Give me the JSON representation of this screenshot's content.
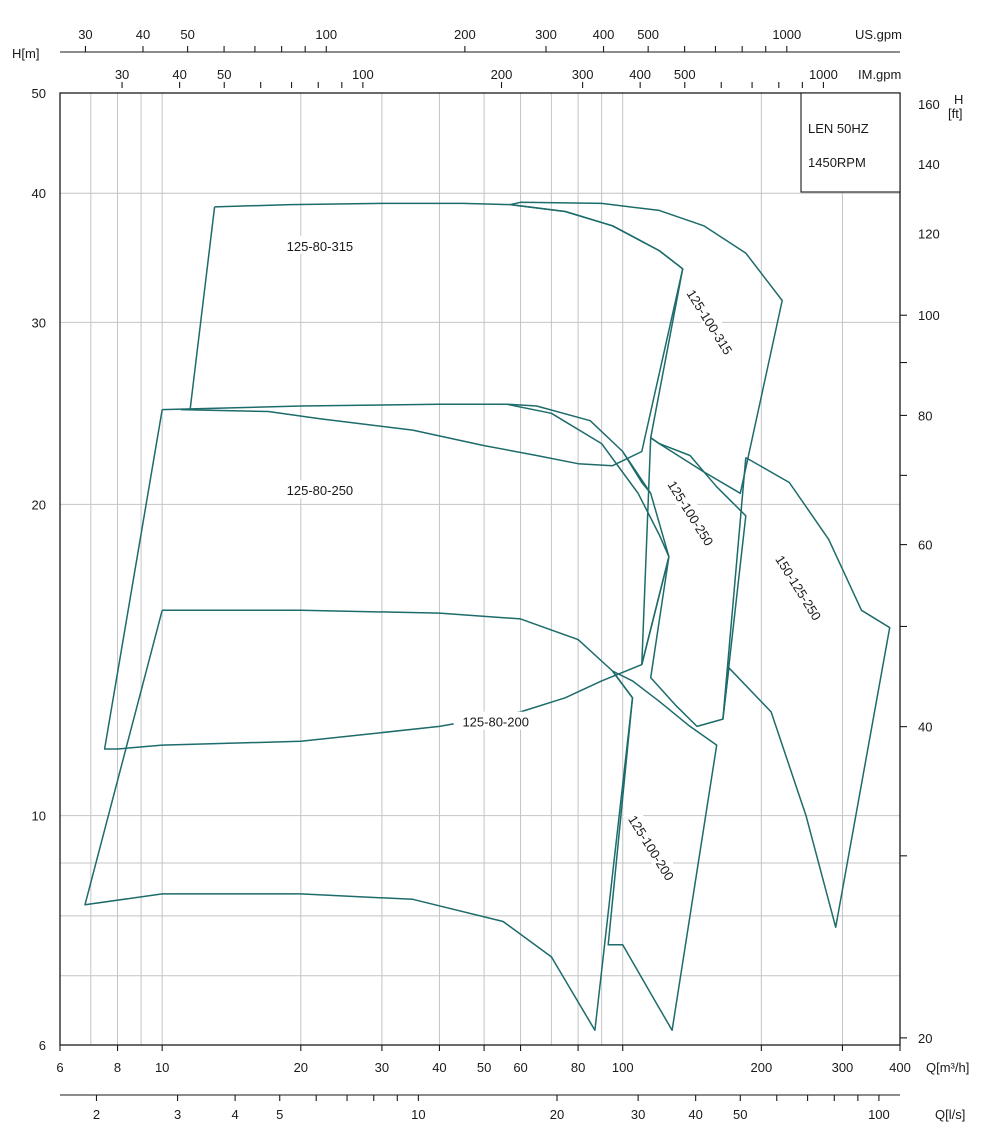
{
  "chart_data": {
    "type": "line",
    "scale": "log-log",
    "grid": true,
    "info_box": [
      "LEN 50HZ",
      "1450RPM"
    ],
    "axes": {
      "x_main": {
        "label": "Q[m³/h]",
        "range": [
          6,
          400
        ],
        "ticks": [
          6,
          8,
          10,
          20,
          30,
          40,
          50,
          60,
          80,
          100,
          200,
          300,
          400
        ]
      },
      "x_ls": {
        "label": "Q[l/s]",
        "ticks": [
          2,
          3,
          4,
          5,
          10,
          20,
          30,
          40,
          50,
          100
        ]
      },
      "x_usgpm": {
        "label": "US.gpm",
        "ticks": [
          30,
          40,
          50,
          100,
          200,
          300,
          400,
          500,
          1000
        ]
      },
      "x_imgpm": {
        "label": "IM.gpm",
        "ticks": [
          30,
          40,
          50,
          100,
          200,
          300,
          400,
          500,
          1000
        ]
      },
      "y_left": {
        "label": "H[m]",
        "range": [
          6,
          50
        ],
        "ticks": [
          6,
          10,
          20,
          30,
          40,
          50
        ]
      },
      "y_right": {
        "label": "H",
        "unit": "[ft]",
        "ticks": [
          20,
          40,
          60,
          80,
          100,
          120,
          140,
          160
        ]
      }
    },
    "series": [
      {
        "name": "125-80-315",
        "label_at": [
          22,
          35.5
        ],
        "label_rot": 0,
        "envelope": [
          [
            13,
            38.8
          ],
          [
            19,
            39.0
          ],
          [
            30,
            39.1
          ],
          [
            45,
            39.1
          ],
          [
            57,
            39.0
          ],
          [
            75,
            38.4
          ],
          [
            95,
            37.2
          ],
          [
            120,
            35.2
          ],
          [
            135,
            33.8
          ],
          [
            110,
            22.5
          ],
          [
            95,
            21.8
          ],
          [
            80,
            21.9
          ],
          [
            65,
            22.3
          ],
          [
            50,
            22.8
          ],
          [
            35,
            23.6
          ],
          [
            22,
            24.2
          ],
          [
            17,
            24.6
          ],
          [
            11,
            24.7
          ],
          [
            11.5,
            24.7
          ],
          [
            13,
            38.8
          ]
        ]
      },
      {
        "name": "125-100-315",
        "label_at": [
          154,
          30
        ],
        "label_rot": 58,
        "envelope": [
          [
            57,
            39.0
          ],
          [
            60,
            39.2
          ],
          [
            90,
            39.1
          ],
          [
            120,
            38.5
          ],
          [
            150,
            37.2
          ],
          [
            185,
            35
          ],
          [
            222,
            31.5
          ],
          [
            180,
            20.5
          ],
          [
            150,
            21.5
          ],
          [
            120,
            22.9
          ],
          [
            115,
            23.2
          ],
          [
            135,
            33.8
          ],
          [
            120,
            35.2
          ],
          [
            95,
            37.2
          ],
          [
            75,
            38.4
          ],
          [
            57,
            39.0
          ]
        ]
      },
      {
        "name": "125-80-250",
        "label_at": [
          22,
          20.6
        ],
        "label_rot": 0,
        "envelope": [
          [
            10,
            24.7
          ],
          [
            20,
            24.9
          ],
          [
            40,
            25.0
          ],
          [
            56,
            25.0
          ],
          [
            70,
            24.5
          ],
          [
            90,
            22.9
          ],
          [
            108,
            20.5
          ],
          [
            120,
            18.7
          ],
          [
            126,
            17.8
          ],
          [
            110,
            14
          ],
          [
            90,
            13.5
          ],
          [
            75,
            13.0
          ],
          [
            60,
            12.6
          ],
          [
            40,
            12.2
          ],
          [
            20,
            11.8
          ],
          [
            10,
            11.7
          ],
          [
            8,
            11.6
          ],
          [
            7.5,
            11.6
          ],
          [
            10,
            24.7
          ]
        ]
      },
      {
        "name": "125-100-250",
        "label_at": [
          140,
          19.6
        ],
        "label_rot": 58,
        "envelope": [
          [
            56,
            25.0
          ],
          [
            65,
            24.9
          ],
          [
            85,
            24.1
          ],
          [
            100,
            22.5
          ],
          [
            110,
            21
          ],
          [
            115,
            20.5
          ],
          [
            126,
            17.8
          ],
          [
            110,
            14
          ],
          [
            115,
            23.2
          ],
          [
            120,
            22.9
          ],
          [
            140,
            22.3
          ],
          [
            160,
            20.8
          ],
          [
            185,
            19.5
          ],
          [
            165,
            12.4
          ],
          [
            145,
            12.2
          ],
          [
            130,
            12.8
          ],
          [
            115,
            13.6
          ],
          [
            126,
            17.8
          ],
          [
            115,
            20.5
          ],
          [
            100,
            22.5
          ],
          [
            85,
            24.1
          ],
          [
            65,
            24.9
          ],
          [
            56,
            25.0
          ]
        ]
      },
      {
        "name": "150-125-250",
        "label_at": [
          240,
          16.6
        ],
        "label_rot": 58,
        "envelope": [
          [
            185,
            22.2
          ],
          [
            230,
            21
          ],
          [
            280,
            18.5
          ],
          [
            330,
            15.8
          ],
          [
            380,
            15.2
          ],
          [
            290,
            7.8
          ],
          [
            250,
            10
          ],
          [
            210,
            12.6
          ],
          [
            170,
            13.9
          ],
          [
            165,
            12.4
          ],
          [
            185,
            22.2
          ]
        ]
      },
      {
        "name": "125-80-200",
        "label_at": [
          53,
          12.3
        ],
        "label_rot": 0,
        "envelope": [
          [
            10,
            15.8
          ],
          [
            20,
            15.8
          ],
          [
            40,
            15.7
          ],
          [
            60,
            15.5
          ],
          [
            80,
            14.8
          ],
          [
            95,
            13.8
          ],
          [
            105,
            13.0
          ],
          [
            87,
            6.2
          ],
          [
            70,
            7.3
          ],
          [
            55,
            7.9
          ],
          [
            35,
            8.3
          ],
          [
            20,
            8.4
          ],
          [
            10,
            8.4
          ],
          [
            6.8,
            8.2
          ],
          [
            10,
            15.8
          ]
        ]
      },
      {
        "name": "125-100-200",
        "label_at": [
          115,
          9.3
        ],
        "label_rot": 58,
        "envelope": [
          [
            95,
            13.8
          ],
          [
            105,
            13.5
          ],
          [
            120,
            12.9
          ],
          [
            140,
            12.2
          ],
          [
            160,
            11.7
          ],
          [
            128,
            6.2
          ],
          [
            118,
            6.6
          ],
          [
            100,
            7.5
          ],
          [
            93,
            7.5
          ],
          [
            105,
            13.0
          ],
          [
            95,
            13.8
          ]
        ]
      }
    ]
  }
}
